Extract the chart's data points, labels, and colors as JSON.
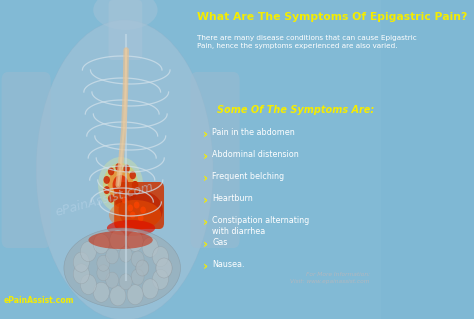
{
  "bg_color": "#7fb8d4",
  "title_line1": "What Are The Symptoms Of Epigastric Pain?",
  "subtitle": "There are many disease conditions that can cause Epigastric\nPain, hence the symptoms experienced are also varied.",
  "section_header": "Some Of The Symptoms Are:",
  "symptoms": [
    "Pain in the abdomen",
    "Abdominal distension",
    "Frequent belching",
    "Heartburn",
    "Constipation alternating\nwith diarrhea",
    "Gas",
    "Nausea."
  ],
  "watermark": "ePainAssist.com",
  "footer_left": "ePainAssist.com",
  "footer_info": "For More Information:\nVisit: www.epainassist.com",
  "title_color": "#f5ec00",
  "subtitle_color": "#ffffff",
  "section_header_color": "#f5ec00",
  "symptom_color": "#ffffff",
  "bullet_color": "#f5ec00",
  "watermark_color": "#b8d4e8",
  "footer_color": "#f5ec00",
  "info_color": "#b0b8c0",
  "body_color": "#b8cedd",
  "rib_color": "#d0e0ea",
  "spine_color": "#c8dce8",
  "esoph_color": "#e8c090",
  "stomach_color": "#cc2200",
  "glow_color": "#ff6600",
  "intestine_color": "#a8b8c0"
}
